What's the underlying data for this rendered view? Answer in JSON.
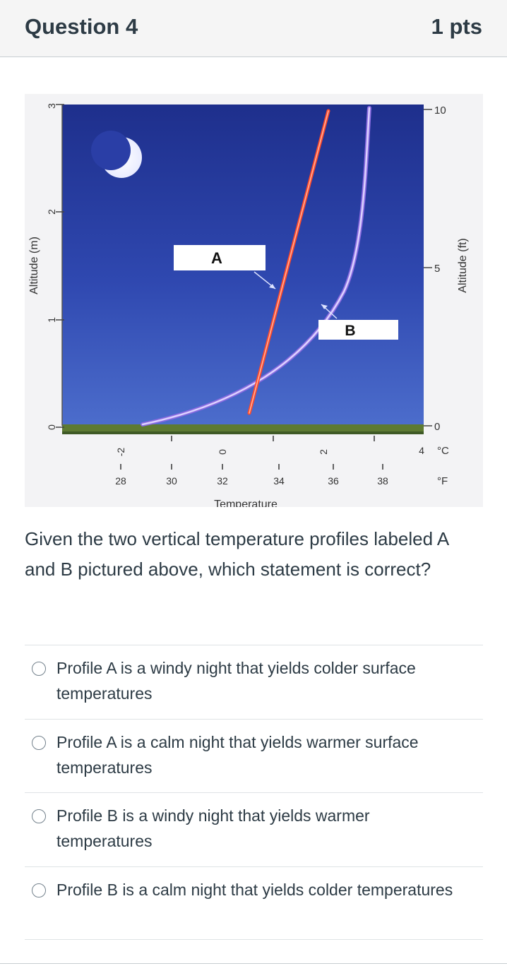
{
  "header": {
    "title": "Question 4",
    "points": "1 pts"
  },
  "figure": {
    "left_axis_title": "Altitude (m)",
    "left_ticks": [
      "3",
      "2",
      "1",
      "0"
    ],
    "right_axis_title": "Altitude (ft)",
    "right_ticks": [
      "10",
      "5",
      "0"
    ],
    "celsius_ticks": [
      "-2",
      "0",
      "2",
      "4"
    ],
    "celsius_unit": "°C",
    "fahrenheit_ticks": [
      "28",
      "30",
      "32",
      "34",
      "36",
      "38"
    ],
    "fahrenheit_unit": "°F",
    "x_axis_title": "Temperature",
    "label_a": "A",
    "label_b": "B",
    "colors": {
      "sky_top": "#1e2f8c",
      "sky_bottom": "#4a6bcb",
      "profile_a": "#ff4a2a",
      "profile_b": "#b9a6ff",
      "ground": "#5d7a32"
    }
  },
  "question": {
    "text": "Given the two vertical temperature profiles labeled A and B pictured above, which statement is correct?"
  },
  "answers": [
    {
      "label": "Profile A is a windy night that yields colder surface temperatures"
    },
    {
      "label": "Profile A is a calm night that yields warmer surface temperatures"
    },
    {
      "label": "Profile B is a windy night that yields warmer temperatures"
    },
    {
      "label": "Profile B is a calm night that yields colder temperatures"
    }
  ]
}
